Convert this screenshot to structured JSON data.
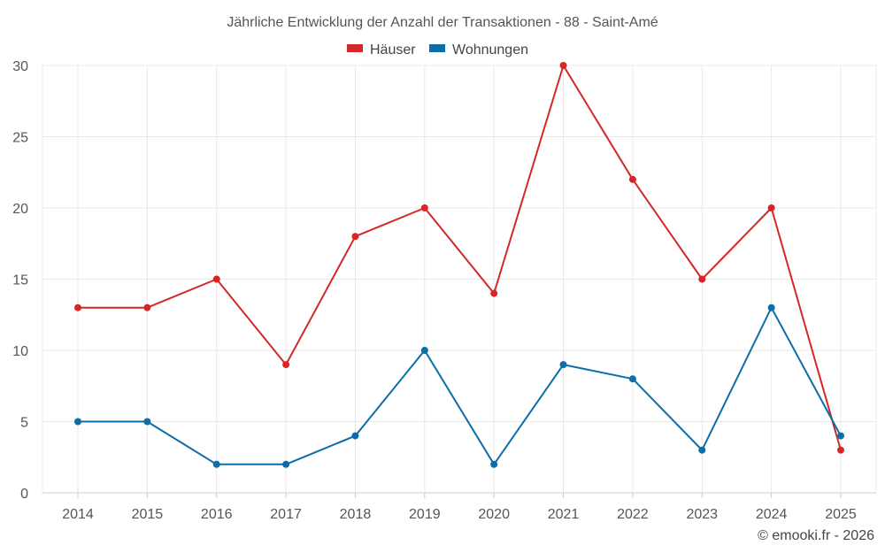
{
  "chart_data": {
    "type": "line",
    "title": "Jährliche Entwicklung der Anzahl der Transaktionen - 88 - Saint-Amé",
    "categories": [
      "2014",
      "2015",
      "2016",
      "2017",
      "2018",
      "2019",
      "2020",
      "2021",
      "2022",
      "2023",
      "2024",
      "2025"
    ],
    "series": [
      {
        "name": "Häuser",
        "color": "#d62728",
        "values": [
          13,
          13,
          15,
          9,
          18,
          20,
          14,
          30,
          22,
          15,
          20,
          3
        ]
      },
      {
        "name": "Wohnungen",
        "color": "#0b6ea8",
        "values": [
          5,
          5,
          2,
          2,
          4,
          10,
          2,
          9,
          8,
          3,
          13,
          4
        ]
      }
    ],
    "ylim": [
      0,
      30
    ],
    "yticks": [
      0,
      5,
      10,
      15,
      20,
      25,
      30
    ],
    "grid": true,
    "legend_position": "top-center"
  },
  "credit": "© emooki.fr - 2026"
}
